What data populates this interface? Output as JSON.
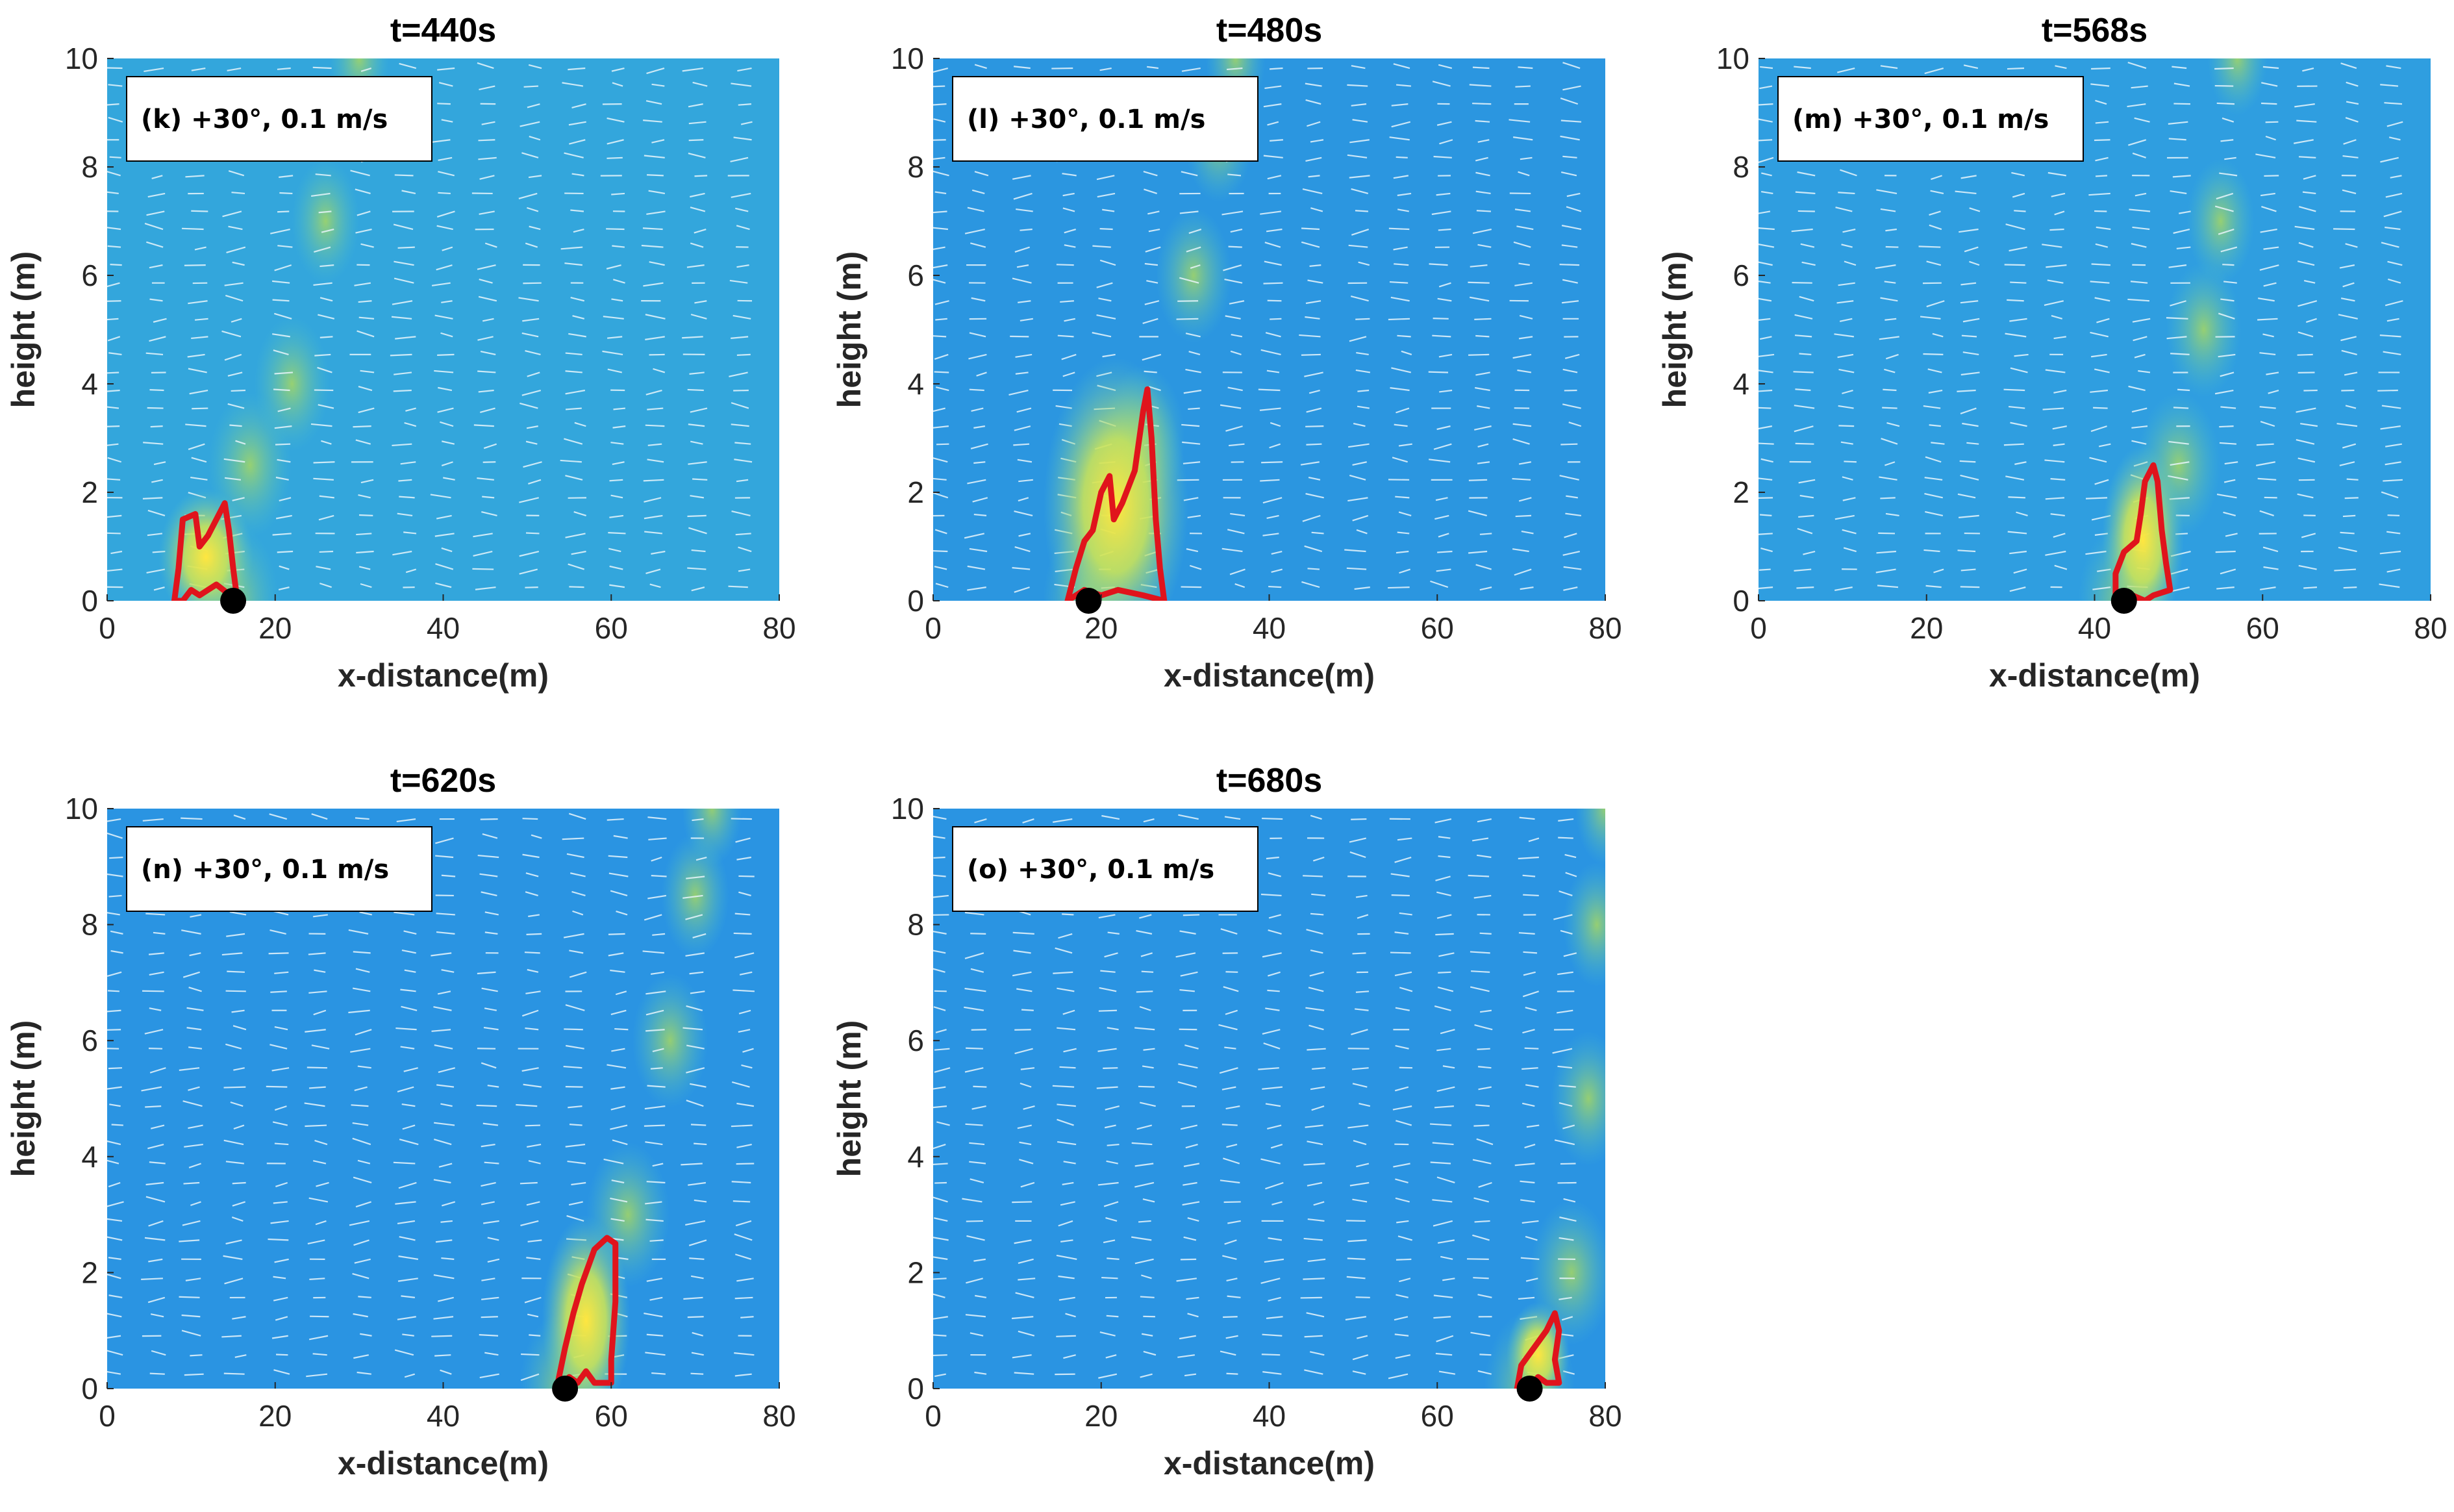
{
  "chart_data": [
    {
      "type": "heatmap",
      "title": "t=440s",
      "panel_label": "(k) +30°, 0.1 m/s",
      "xlabel": "x-distance(m)",
      "ylabel": "height (m)",
      "xlim": [
        0,
        80
      ],
      "ylim": [
        0,
        10
      ],
      "xticks": [
        0,
        20,
        40,
        60,
        80
      ],
      "yticks": [
        0,
        2,
        4,
        6,
        8,
        10
      ],
      "background_color": "#33a6dc",
      "source_x": 15,
      "fire_front_polygon": [
        [
          8,
          0
        ],
        [
          8.5,
          0.6
        ],
        [
          9,
          1.5
        ],
        [
          10.5,
          1.6
        ],
        [
          11,
          1.0
        ],
        [
          12,
          1.2
        ],
        [
          13,
          1.5
        ],
        [
          14,
          1.8
        ],
        [
          14.5,
          1.3
        ],
        [
          15,
          0.6
        ],
        [
          15.5,
          0
        ],
        [
          13,
          0.3
        ],
        [
          11,
          0.1
        ],
        [
          10,
          0.2
        ],
        [
          9,
          0
        ]
      ],
      "plume_axis": [
        [
          15,
          0
        ],
        [
          17,
          2.5
        ],
        [
          22,
          4
        ],
        [
          26,
          7
        ],
        [
          30,
          10
        ]
      ]
    },
    {
      "type": "heatmap",
      "title": "t=480s",
      "panel_label": "(l) +30°, 0.1 m/s",
      "xlabel": "x-distance(m)",
      "ylabel": "height (m)",
      "xlim": [
        0,
        80
      ],
      "ylim": [
        0,
        10
      ],
      "xticks": [
        0,
        20,
        40,
        60,
        80
      ],
      "yticks": [
        0,
        2,
        4,
        6,
        8,
        10
      ],
      "background_color": "#2b96e0",
      "source_x": 18.5,
      "fire_front_polygon": [
        [
          16,
          0
        ],
        [
          17,
          0.6
        ],
        [
          18,
          1.1
        ],
        [
          19,
          1.3
        ],
        [
          20,
          2.0
        ],
        [
          21,
          2.3
        ],
        [
          21.5,
          1.5
        ],
        [
          22.5,
          1.8
        ],
        [
          24,
          2.4
        ],
        [
          25,
          3.5
        ],
        [
          25.5,
          3.9
        ],
        [
          26,
          3.0
        ],
        [
          26.5,
          1.5
        ],
        [
          27,
          0.6
        ],
        [
          27.5,
          0
        ],
        [
          25,
          0.1
        ],
        [
          22,
          0.2
        ],
        [
          20,
          0.1
        ],
        [
          18,
          0.2
        ]
      ],
      "plume_axis": [
        [
          18.5,
          0
        ],
        [
          25,
          3
        ],
        [
          31,
          6
        ],
        [
          34,
          8.5
        ],
        [
          36,
          10
        ]
      ]
    },
    {
      "type": "heatmap",
      "title": "t=568s",
      "panel_label": "(m) +30°, 0.1 m/s",
      "xlabel": "x-distance(m)",
      "ylabel": "height (m)",
      "xlim": [
        0,
        80
      ],
      "ylim": [
        0,
        10
      ],
      "xticks": [
        0,
        20,
        40,
        60,
        80
      ],
      "yticks": [
        0,
        2,
        4,
        6,
        8,
        10
      ],
      "background_color": "#2f9ee0",
      "source_x": 43.5,
      "fire_front_polygon": [
        [
          42.5,
          0
        ],
        [
          42.5,
          0.5
        ],
        [
          43.5,
          0.9
        ],
        [
          45,
          1.1
        ],
        [
          45.5,
          1.6
        ],
        [
          46,
          2.2
        ],
        [
          47,
          2.5
        ],
        [
          47.5,
          2.2
        ],
        [
          48,
          1.3
        ],
        [
          48.5,
          0.7
        ],
        [
          49,
          0.2
        ],
        [
          47,
          0.1
        ],
        [
          46,
          0
        ],
        [
          44.5,
          0.1
        ]
      ],
      "plume_axis": [
        [
          43.5,
          0
        ],
        [
          50,
          2.5
        ],
        [
          53,
          5
        ],
        [
          55,
          7
        ],
        [
          57,
          10
        ]
      ]
    },
    {
      "type": "heatmap",
      "title": "t=620s",
      "panel_label": "(n) +30°, 0.1 m/s",
      "xlabel": "x-distance(m)",
      "ylabel": "height (m)",
      "xlim": [
        0,
        80
      ],
      "ylim": [
        0,
        10
      ],
      "xticks": [
        0,
        20,
        40,
        60,
        80
      ],
      "yticks": [
        0,
        2,
        4,
        6,
        8,
        10
      ],
      "background_color": "#2a94e2",
      "source_x": 54.5,
      "fire_front_polygon": [
        [
          53.5,
          0
        ],
        [
          54.5,
          0.7
        ],
        [
          55.5,
          1.3
        ],
        [
          56.5,
          1.8
        ],
        [
          58,
          2.4
        ],
        [
          59.5,
          2.6
        ],
        [
          60.5,
          2.5
        ],
        [
          60.5,
          1.5
        ],
        [
          60,
          0.5
        ],
        [
          60,
          0.1
        ],
        [
          58,
          0.1
        ],
        [
          57,
          0.3
        ],
        [
          56,
          0.1
        ],
        [
          55,
          0.2
        ]
      ],
      "plume_axis": [
        [
          54.5,
          0
        ],
        [
          62,
          3
        ],
        [
          67,
          6
        ],
        [
          70,
          8.5
        ],
        [
          72,
          10
        ]
      ]
    },
    {
      "type": "heatmap",
      "title": "t=680s",
      "panel_label": "(o) +30°, 0.1 m/s",
      "xlabel": "x-distance(m)",
      "ylabel": "height (m)",
      "xlim": [
        0,
        80
      ],
      "ylim": [
        0,
        10
      ],
      "xticks": [
        0,
        20,
        40,
        60,
        80
      ],
      "yticks": [
        0,
        2,
        4,
        6,
        8,
        10
      ],
      "background_color": "#2a94e2",
      "source_x": 71,
      "fire_front_polygon": [
        [
          69.5,
          0
        ],
        [
          70,
          0.4
        ],
        [
          71,
          0.6
        ],
        [
          72,
          0.8
        ],
        [
          73,
          1.0
        ],
        [
          74,
          1.3
        ],
        [
          74.5,
          1.0
        ],
        [
          74,
          0.5
        ],
        [
          74.5,
          0.1
        ],
        [
          73,
          0.1
        ],
        [
          72,
          0.2
        ],
        [
          71,
          0
        ]
      ],
      "plume_axis": [
        [
          71,
          0
        ],
        [
          76,
          2
        ],
        [
          78,
          5
        ],
        [
          79,
          8
        ],
        [
          80,
          10
        ]
      ]
    }
  ]
}
